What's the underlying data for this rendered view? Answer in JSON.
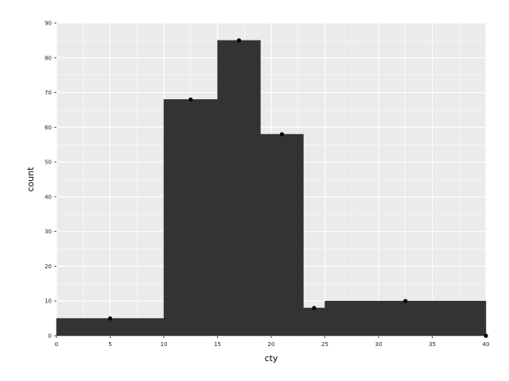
{
  "chart_data": {
    "type": "bar",
    "title": "",
    "xlabel": "cty",
    "ylabel": "count",
    "xlim": [
      0,
      40
    ],
    "ylim": [
      0,
      90
    ],
    "x_ticks": [
      0,
      5,
      10,
      15,
      20,
      25,
      30,
      35,
      40
    ],
    "y_ticks": [
      0,
      10,
      20,
      30,
      40,
      50,
      60,
      70,
      80,
      90
    ],
    "x_tick_labels": [
      "0",
      "5",
      "10",
      "15",
      "20",
      "25",
      "30",
      "35",
      "40"
    ],
    "y_tick_labels": [
      "0",
      "10",
      "20",
      "30",
      "40",
      "50",
      "60",
      "70",
      "80",
      "90"
    ],
    "bins": [
      {
        "x_start": 0,
        "x_end": 10,
        "count": 5
      },
      {
        "x_start": 10,
        "x_end": 15,
        "count": 68
      },
      {
        "x_start": 15,
        "x_end": 19,
        "count": 85
      },
      {
        "x_start": 19,
        "x_end": 23,
        "count": 58
      },
      {
        "x_start": 23,
        "x_end": 25,
        "count": 8
      },
      {
        "x_start": 25,
        "x_end": 40,
        "count": 10
      }
    ],
    "points": [
      {
        "x": 5,
        "y": 5
      },
      {
        "x": 12.5,
        "y": 68
      },
      {
        "x": 17,
        "y": 85
      },
      {
        "x": 21,
        "y": 58
      },
      {
        "x": 24,
        "y": 8
      },
      {
        "x": 32.5,
        "y": 10
      },
      {
        "x": 40,
        "y": 0
      }
    ],
    "grid": true,
    "legend": "none",
    "colors": {
      "panel_background": "#ebebeb",
      "grid_line": "#ffffff",
      "bar_fill": "#333333",
      "point": "#000000",
      "tick_mark": "#333333"
    }
  }
}
